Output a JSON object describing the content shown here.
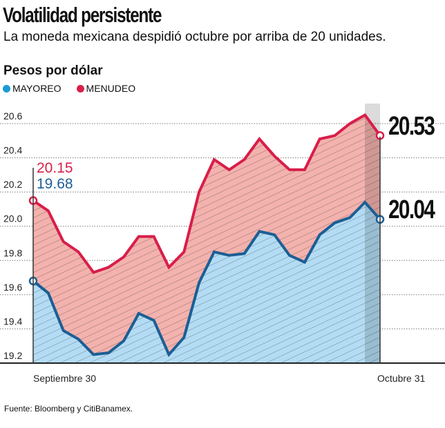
{
  "header": {
    "title": "Volatilidad persistente",
    "subtitle": "La moneda mexicana despidió octubre por arriba de 20 unidades.",
    "unit_label": "Pesos por dólar"
  },
  "legend": [
    {
      "label": "MAYOREO",
      "color": "#1a9ad6"
    },
    {
      "label": "MENUDEO",
      "color": "#d81e4a"
    }
  ],
  "chart_data": {
    "type": "area",
    "ylabel": "Pesos por dólar",
    "ylim": [
      19.2,
      20.6
    ],
    "yticks": [
      "19.2",
      "19.4",
      "19.6",
      "19.8",
      "20.0",
      "20.2",
      "20.4",
      "20.6"
    ],
    "x_labels": {
      "start": "Septiembre 30",
      "end": "Octubre 31"
    },
    "grid": true,
    "series": [
      {
        "name": "MENUDEO",
        "line_color": "#d81e4a",
        "fill_color": "#f3b2ad",
        "values": [
          20.15,
          20.09,
          19.91,
          19.85,
          19.73,
          19.76,
          19.82,
          19.94,
          19.94,
          19.76,
          19.85,
          20.2,
          20.39,
          20.33,
          20.39,
          20.51,
          20.41,
          20.33,
          20.33,
          20.51,
          20.53,
          20.6,
          20.65,
          20.53
        ],
        "start_label": "20.15",
        "end_label": "20.53"
      },
      {
        "name": "MAYOREO",
        "line_color": "#1c5e94",
        "fill_color": "#b3dcf4",
        "values": [
          19.68,
          19.61,
          19.39,
          19.34,
          19.25,
          19.26,
          19.33,
          19.49,
          19.45,
          19.25,
          19.35,
          19.67,
          19.85,
          19.83,
          19.84,
          19.97,
          19.95,
          19.83,
          19.79,
          19.95,
          20.02,
          20.05,
          20.14,
          20.04
        ],
        "start_label": "19.68",
        "end_label": "20.04"
      }
    ]
  },
  "footer": {
    "source": "Fuente: Bloomberg y CitiBanamex."
  }
}
